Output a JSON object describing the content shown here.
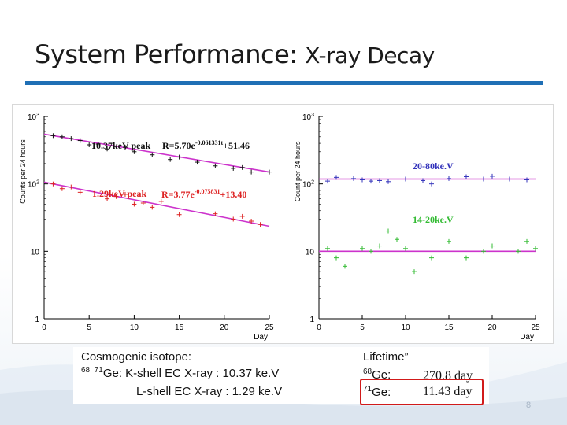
{
  "slide": {
    "title": "System Performance:",
    "title_sub": "X-ray Decay",
    "page_number": "8",
    "accent": "#1f6fb5"
  },
  "text_box": {
    "heading": "Cosmogenic isotope:",
    "line1_isotopes": "68, 71",
    "line1_text": "Ge:  K-shell EC X-ray : 10.37 ke.V",
    "line2_text": "L-shell EC X-ray :   1.29 ke.V",
    "lifetime_heading": "Lifetime”",
    "ge68_mass": "68",
    "ge68_label": "Ge:",
    "ge68_value": "270.8 day",
    "ge71_mass": "71",
    "ge71_label": "Ge:",
    "ge71_value": "11.43 day"
  },
  "chart_data": [
    {
      "type": "scatter",
      "log_y": true,
      "xlabel": "Day",
      "ylabel": "Counts per 24 hours",
      "xlim": [
        0,
        25
      ],
      "ylim": [
        1,
        1000
      ],
      "x_ticks": [
        "0",
        "5",
        "10",
        "15",
        "20",
        "25"
      ],
      "y_ticks": [
        "1",
        "10",
        "10^2",
        "10^3"
      ],
      "series": [
        {
          "name": "10.37keV peak",
          "fit_label": "R=5.70e",
          "fit_exponent": "-0.061331t",
          "fit_const": "+51.46",
          "color": "#111111",
          "fit_color": "#cc33cc",
          "points": [
            [
              1,
              520
            ],
            [
              2,
              500
            ],
            [
              3,
              470
            ],
            [
              4,
              440
            ],
            [
              5,
              380
            ],
            [
              6,
              390
            ],
            [
              7,
              330
            ],
            [
              9,
              350
            ],
            [
              10,
              300
            ],
            [
              12,
              270
            ],
            [
              14,
              230
            ],
            [
              15,
              250
            ],
            [
              17,
              210
            ],
            [
              19,
              185
            ],
            [
              21,
              170
            ],
            [
              22,
              175
            ],
            [
              23,
              150
            ],
            [
              25,
              150
            ]
          ]
        },
        {
          "name": "1.29keV peak",
          "fit_label": "R=3.77e",
          "fit_exponent": "-0.075831",
          "fit_const": "+13.40",
          "color": "#dd2222",
          "fit_color": "#cc33cc",
          "points": [
            [
              1,
              100
            ],
            [
              2,
              85
            ],
            [
              3,
              90
            ],
            [
              4,
              75
            ],
            [
              7,
              60
            ],
            [
              8,
              65
            ],
            [
              9,
              70
            ],
            [
              10,
              50
            ],
            [
              11,
              52
            ],
            [
              12,
              45
            ],
            [
              13,
              55
            ],
            [
              15,
              35
            ],
            [
              19,
              36
            ],
            [
              21,
              30
            ],
            [
              22,
              33
            ],
            [
              23,
              28
            ],
            [
              24,
              25
            ]
          ]
        }
      ]
    },
    {
      "type": "scatter",
      "log_y": true,
      "xlabel": "Day",
      "ylabel": "Count per 24 hours",
      "xlim": [
        0,
        25
      ],
      "ylim": [
        1,
        1000
      ],
      "x_ticks": [
        "0",
        "5",
        "10",
        "15",
        "20",
        "25"
      ],
      "y_ticks": [
        "1",
        "10",
        "10^2",
        "10^3"
      ],
      "series": [
        {
          "name": "20-80ke.V",
          "color": "#3333bb",
          "fit_color": "#cc33cc",
          "fit_level": 118,
          "points": [
            [
              1,
              110
            ],
            [
              2,
              125
            ],
            [
              4,
              120
            ],
            [
              5,
              115
            ],
            [
              6,
              110
            ],
            [
              7,
              112
            ],
            [
              8,
              108
            ],
            [
              10,
              118
            ],
            [
              12,
              112
            ],
            [
              13,
              100
            ],
            [
              15,
              120
            ],
            [
              17,
              128
            ],
            [
              19,
              118
            ],
            [
              20,
              130
            ],
            [
              22,
              118
            ],
            [
              24,
              115
            ]
          ]
        },
        {
          "name": "14-20ke.V",
          "color": "#33bb33",
          "fit_color": "#cc33cc",
          "fit_level": 10,
          "points": [
            [
              1,
              11
            ],
            [
              2,
              8
            ],
            [
              3,
              6
            ],
            [
              5,
              11
            ],
            [
              6,
              10
            ],
            [
              7,
              12
            ],
            [
              8,
              20
            ],
            [
              9,
              15
            ],
            [
              10,
              11
            ],
            [
              11,
              5
            ],
            [
              13,
              8
            ],
            [
              15,
              14
            ],
            [
              17,
              8
            ],
            [
              19,
              10
            ],
            [
              20,
              12
            ],
            [
              23,
              10
            ],
            [
              24,
              14
            ],
            [
              25,
              11
            ]
          ]
        }
      ]
    }
  ]
}
